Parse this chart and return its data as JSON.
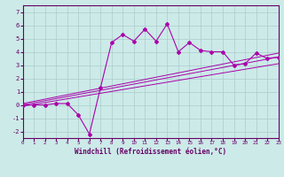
{
  "xlabel": "Windchill (Refroidissement éolien,°C)",
  "bg_color": "#cceae8",
  "grid_color": "#aacccc",
  "line_color": "#aa00aa",
  "xlim": [
    0,
    23
  ],
  "ylim": [
    -2.5,
    7.5
  ],
  "xticks": [
    0,
    1,
    2,
    3,
    4,
    5,
    6,
    7,
    8,
    9,
    10,
    11,
    12,
    13,
    14,
    15,
    16,
    17,
    18,
    19,
    20,
    21,
    22,
    23
  ],
  "yticks": [
    -2,
    -1,
    0,
    1,
    2,
    3,
    4,
    5,
    6,
    7
  ],
  "series1_x": [
    0,
    1,
    2,
    3,
    4,
    5,
    6,
    7,
    8,
    9,
    10,
    11,
    12,
    13,
    14,
    15,
    16,
    17,
    18,
    19,
    20,
    21,
    22,
    23
  ],
  "series1_y": [
    0.0,
    0.0,
    0.0,
    0.1,
    0.1,
    -0.75,
    -2.2,
    1.3,
    4.7,
    5.3,
    4.8,
    5.7,
    4.8,
    6.1,
    4.0,
    4.7,
    4.1,
    4.0,
    4.0,
    3.0,
    3.1,
    3.9,
    3.5,
    3.6
  ],
  "line1_x": [
    0,
    23
  ],
  "line1_y": [
    0.0,
    3.6
  ],
  "line2_x": [
    0,
    23
  ],
  "line2_y": [
    -0.1,
    3.1
  ],
  "line3_x": [
    0,
    23
  ],
  "line3_y": [
    0.1,
    3.9
  ],
  "spine_color": "#660066",
  "tick_color": "#660066",
  "xlabel_color": "#660066",
  "xlabel_fontsize": 5.5,
  "tick_fontsize_x": 4.2,
  "tick_fontsize_y": 5.0
}
